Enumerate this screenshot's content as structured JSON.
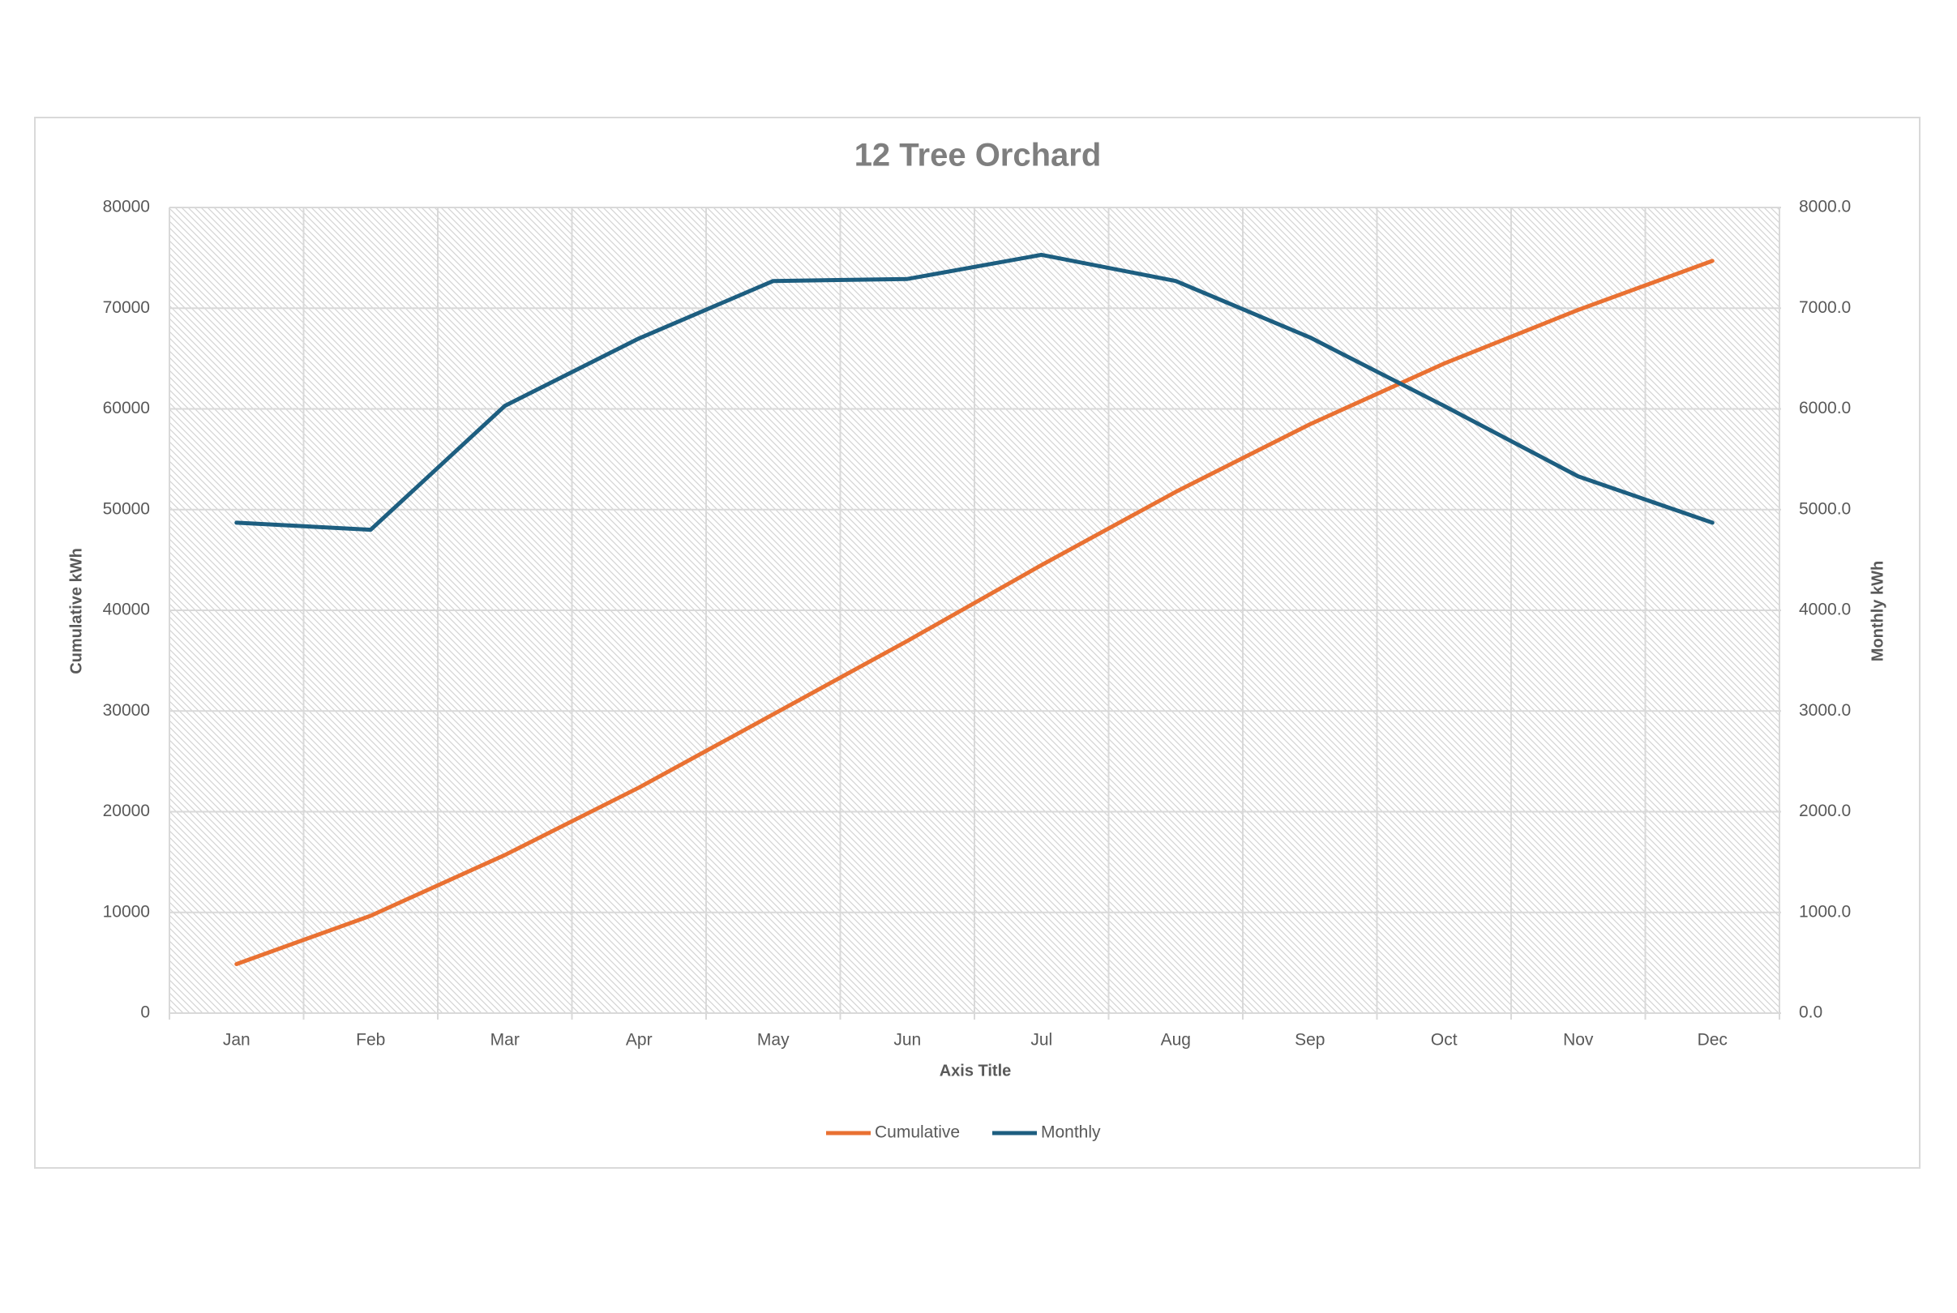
{
  "chart_data": {
    "type": "line",
    "title": "12 Tree Orchard",
    "categories": [
      "Jan",
      "Feb",
      "Mar",
      "Apr",
      "May",
      "Jun",
      "Jul",
      "Aug",
      "Sep",
      "Oct",
      "Nov",
      "Dec"
    ],
    "x_label": "Axis Title",
    "y_label": "Cumulative kWh",
    "y2_label": "Monthly kWh",
    "series": [
      {
        "name": "Cumulative",
        "color": "#e97132",
        "values": [
          4870,
          9670,
          15700,
          22400,
          29670,
          36960,
          44490,
          51760,
          58470,
          64500,
          69830,
          74700
        ]
      },
      {
        "name": "Monthly",
        "color": "#1d5e80",
        "axis": "y2",
        "values": [
          4870,
          4800,
          6030,
          6700,
          7270,
          7290,
          7530,
          7270,
          6710,
          6030,
          5330,
          4870
        ]
      }
    ],
    "ylim": [
      0,
      80000
    ],
    "yticks": [
      0,
      10000,
      20000,
      30000,
      40000,
      50000,
      60000,
      70000,
      80000
    ],
    "y2lim": [
      0,
      8000
    ],
    "y2ticks": [
      {
        "value": 0,
        "label": "0.0"
      },
      {
        "value": 1000,
        "label": "1000.0"
      },
      {
        "value": 2000,
        "label": "2000.0"
      },
      {
        "value": 3000,
        "label": "3000.0"
      },
      {
        "value": 4000,
        "label": "4000.0"
      },
      {
        "value": 5000,
        "label": "5000.0"
      },
      {
        "value": 6000,
        "label": "6000.0"
      },
      {
        "value": 7000,
        "label": "7000.0"
      },
      {
        "value": 8000,
        "label": "8000.0"
      }
    ],
    "grid": true,
    "legend": "bottom"
  }
}
